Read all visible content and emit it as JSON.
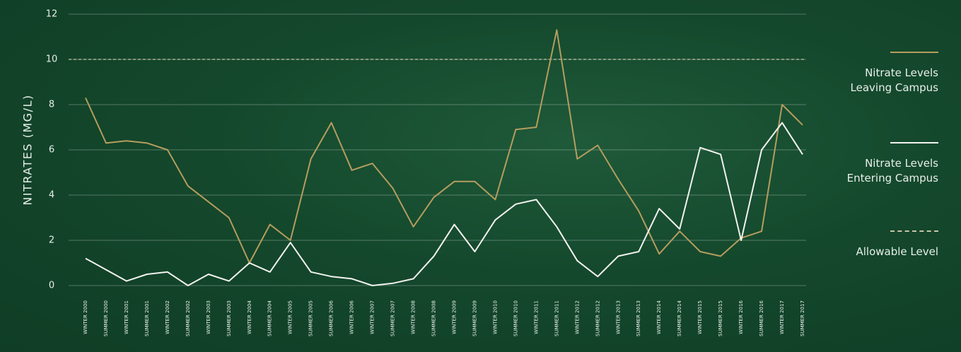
{
  "chart_data": {
    "type": "line",
    "y_label": "NITRATES (MG/L)",
    "categories": [
      "WINTER 2000",
      "SUMMER 2000",
      "WINTER 2001",
      "SUMMER 2001",
      "WINTER 2002",
      "SUMMER 2002",
      "WINTER 2003",
      "SUMMER 2003",
      "WINTER 2004",
      "SUMMER 2004",
      "WINTER 2005",
      "SUMMER 2005",
      "SUMMER 2006",
      "WINTER 2006",
      "WINTER 2007",
      "SUMMER 2007",
      "WINTER 2008",
      "SUMMER 2008",
      "WINTER 2009",
      "SUMMER 2009",
      "WINTER 2010",
      "SUMMER 2010",
      "WINTER 2011",
      "SUMMER 2011",
      "WINTER 2012",
      "SUMMER 2012",
      "WINTER 2013",
      "SUMMER 2013",
      "WINTER 2014",
      "SUMMER 2014",
      "WINTER 2015",
      "SUMMER 2015",
      "WINTER 2016",
      "SUMMER 2016",
      "WINTER 2017",
      "SUMMER 2017"
    ],
    "series": [
      {
        "name": "Nitrate Levels Leaving Campus",
        "color": "#b59d5e",
        "values": [
          8.3,
          6.3,
          6.4,
          6.3,
          6.0,
          4.4,
          3.7,
          3.0,
          1.0,
          2.7,
          2.0,
          5.6,
          7.2,
          5.1,
          5.4,
          4.3,
          2.6,
          3.9,
          4.6,
          4.6,
          3.8,
          6.9,
          7.0,
          11.3,
          5.6,
          6.2,
          4.7,
          3.3,
          1.4,
          2.4,
          1.5,
          1.3,
          2.1,
          2.4,
          8.0,
          7.1
        ]
      },
      {
        "name": "Nitrate Levels Entering Campus",
        "color": "#f2f2ee",
        "values": [
          1.2,
          0.7,
          0.2,
          0.5,
          0.6,
          0.0,
          0.5,
          0.2,
          1.0,
          0.6,
          1.9,
          0.6,
          0.4,
          0.3,
          0.0,
          0.1,
          0.3,
          1.3,
          2.7,
          1.5,
          2.9,
          3.6,
          3.8,
          2.6,
          1.1,
          0.4,
          1.3,
          1.5,
          3.4,
          2.5,
          6.1,
          5.8,
          2.0,
          6.0,
          7.2,
          5.8
        ]
      }
    ],
    "reference_line": {
      "name": "Allowable Level",
      "value": 10,
      "color": "#c9c4a8"
    },
    "ylim": [
      0,
      12
    ],
    "yticks": [
      0,
      2,
      4,
      6,
      8,
      10,
      12
    ],
    "grid": true
  }
}
